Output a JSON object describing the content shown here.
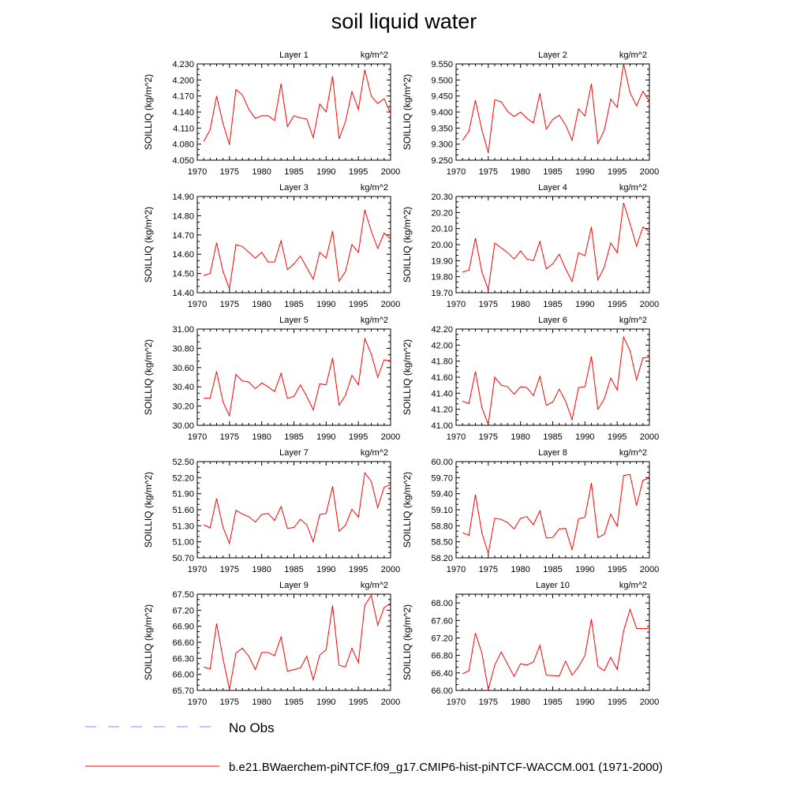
{
  "title": "soil liquid water",
  "legend": {
    "obs": {
      "label": "No Obs",
      "color": "#8a8aff",
      "style": "dashed"
    },
    "model": {
      "label": "b.e21.BWaerchem-piNTCF.f09_g17.CMIP6-hist-piNTCF-WACCM.001 (1971-2000)",
      "color": "#ff0000",
      "style": "solid"
    }
  },
  "chart_data": [
    {
      "type": "line",
      "title": "Layer 1",
      "unit": "kg/m^2",
      "ylabel": "SOILLIQ  (kg/m^2)",
      "xlim": [
        1970,
        2000
      ],
      "xticks": [
        1970,
        1975,
        1980,
        1985,
        1990,
        1995,
        2000
      ],
      "ylim": [
        4.05,
        4.23
      ],
      "yticks": [
        "4.050",
        "4.080",
        "4.110",
        "4.140",
        "4.170",
        "4.200",
        "4.230"
      ],
      "x": [
        1971,
        1972,
        1973,
        1974,
        1975,
        1976,
        1977,
        1978,
        1979,
        1980,
        1981,
        1982,
        1983,
        1984,
        1985,
        1986,
        1987,
        1988,
        1989,
        1990,
        1991,
        1992,
        1993,
        1994,
        1995,
        1996,
        1997,
        1998,
        1999,
        2000
      ],
      "series": [
        {
          "name": "b.e21.BWaerchem-piNTCF.f09_g17.CMIP6-hist-piNTCF-WACCM.001 (1971-2000)",
          "color": "#ff0000",
          "values": [
            4.085,
            4.107,
            4.17,
            4.118,
            4.079,
            4.182,
            4.172,
            4.145,
            4.128,
            4.133,
            4.133,
            4.124,
            4.193,
            4.113,
            4.133,
            4.129,
            4.127,
            4.092,
            4.155,
            4.14,
            4.207,
            4.09,
            4.122,
            4.178,
            4.145,
            4.219,
            4.17,
            4.156,
            4.165,
            4.137
          ]
        }
      ]
    },
    {
      "type": "line",
      "title": "Layer 2",
      "unit": "kg/m^2",
      "ylabel": "SOILLIQ  (kg/m^2)",
      "xlim": [
        1970,
        2000
      ],
      "xticks": [
        1970,
        1975,
        1980,
        1985,
        1990,
        1995,
        2000
      ],
      "ylim": [
        9.25,
        9.55
      ],
      "yticks": [
        "9.250",
        "9.300",
        "9.350",
        "9.400",
        "9.450",
        "9.500",
        "9.550"
      ],
      "x": [
        1971,
        1972,
        1973,
        1974,
        1975,
        1976,
        1977,
        1978,
        1979,
        1980,
        1981,
        1982,
        1983,
        1984,
        1985,
        1986,
        1987,
        1988,
        1989,
        1990,
        1991,
        1992,
        1993,
        1994,
        1995,
        1996,
        1997,
        1998,
        1999,
        2000
      ],
      "series": [
        {
          "name": "b.e21.BWaerchem-piNTCF.f09_g17.CMIP6-hist-piNTCF-WACCM.001 (1971-2000)",
          "color": "#ff0000",
          "values": [
            9.312,
            9.34,
            9.437,
            9.344,
            9.273,
            9.438,
            9.432,
            9.402,
            9.386,
            9.4,
            9.38,
            9.366,
            9.458,
            9.347,
            9.377,
            9.39,
            9.36,
            9.312,
            9.41,
            9.388,
            9.488,
            9.302,
            9.343,
            9.44,
            9.415,
            9.55,
            9.46,
            9.42,
            9.465,
            9.433
          ]
        }
      ]
    },
    {
      "type": "line",
      "title": "Layer 3",
      "unit": "kg/m^2",
      "ylabel": "SOILLIQ  (kg/m^2)",
      "xlim": [
        1970,
        2000
      ],
      "xticks": [
        1970,
        1975,
        1980,
        1985,
        1990,
        1995,
        2000
      ],
      "ylim": [
        14.4,
        14.9
      ],
      "yticks": [
        "14.40",
        "14.50",
        "14.60",
        "14.70",
        "14.80",
        "14.90"
      ],
      "x": [
        1971,
        1972,
        1973,
        1974,
        1975,
        1976,
        1977,
        1978,
        1979,
        1980,
        1981,
        1982,
        1983,
        1984,
        1985,
        1986,
        1987,
        1988,
        1989,
        1990,
        1991,
        1992,
        1993,
        1994,
        1995,
        1996,
        1997,
        1998,
        1999,
        2000
      ],
      "series": [
        {
          "name": "b.e21.BWaerchem-piNTCF.f09_g17.CMIP6-hist-piNTCF-WACCM.001 (1971-2000)",
          "color": "#ff0000",
          "values": [
            14.49,
            14.5,
            14.66,
            14.51,
            14.42,
            14.65,
            14.64,
            14.61,
            14.58,
            14.61,
            14.56,
            14.56,
            14.67,
            14.52,
            14.55,
            14.59,
            14.53,
            14.47,
            14.61,
            14.58,
            14.72,
            14.46,
            14.51,
            14.65,
            14.61,
            14.83,
            14.72,
            14.63,
            14.71,
            14.68
          ]
        }
      ]
    },
    {
      "type": "line",
      "title": "Layer 4",
      "unit": "kg/m^2",
      "ylabel": "SOILLIQ  (kg/m^2)",
      "xlim": [
        1970,
        2000
      ],
      "xticks": [
        1970,
        1975,
        1980,
        1985,
        1990,
        1995,
        2000
      ],
      "ylim": [
        19.7,
        20.3
      ],
      "yticks": [
        "19.70",
        "19.80",
        "19.90",
        "20.00",
        "20.10",
        "20.20",
        "20.30"
      ],
      "x": [
        1971,
        1972,
        1973,
        1974,
        1975,
        1976,
        1977,
        1978,
        1979,
        1980,
        1981,
        1982,
        1983,
        1984,
        1985,
        1986,
        1987,
        1988,
        1989,
        1990,
        1991,
        1992,
        1993,
        1994,
        1995,
        1996,
        1997,
        1998,
        1999,
        2000
      ],
      "series": [
        {
          "name": "b.e21.BWaerchem-piNTCF.f09_g17.CMIP6-hist-piNTCF-WACCM.001 (1971-2000)",
          "color": "#ff0000",
          "values": [
            19.83,
            19.84,
            20.04,
            19.83,
            19.72,
            20.01,
            19.98,
            19.95,
            19.91,
            19.96,
            19.91,
            19.9,
            20.02,
            19.85,
            19.88,
            19.94,
            19.85,
            19.77,
            19.95,
            19.93,
            20.11,
            19.78,
            19.86,
            20.01,
            19.95,
            20.26,
            20.13,
            19.99,
            20.11,
            20.08
          ]
        }
      ]
    },
    {
      "type": "line",
      "title": "Layer 5",
      "unit": "kg/m^2",
      "ylabel": "SOILLIQ  (kg/m^2)",
      "xlim": [
        1970,
        2000
      ],
      "xticks": [
        1970,
        1975,
        1980,
        1985,
        1990,
        1995,
        2000
      ],
      "ylim": [
        30.0,
        31.0
      ],
      "yticks": [
        "30.00",
        "30.20",
        "30.40",
        "30.60",
        "30.80",
        "31.00"
      ],
      "x": [
        1971,
        1972,
        1973,
        1974,
        1975,
        1976,
        1977,
        1978,
        1979,
        1980,
        1981,
        1982,
        1983,
        1984,
        1985,
        1986,
        1987,
        1988,
        1989,
        1990,
        1991,
        1992,
        1993,
        1994,
        1995,
        1996,
        1997,
        1998,
        1999,
        2000
      ],
      "series": [
        {
          "name": "b.e21.BWaerchem-piNTCF.f09_g17.CMIP6-hist-piNTCF-WACCM.001 (1971-2000)",
          "color": "#ff0000",
          "values": [
            30.28,
            30.28,
            30.56,
            30.24,
            30.1,
            30.53,
            30.46,
            30.45,
            30.38,
            30.44,
            30.4,
            30.35,
            30.54,
            30.28,
            30.3,
            30.42,
            30.3,
            30.16,
            30.43,
            30.42,
            30.7,
            30.21,
            30.31,
            30.52,
            30.42,
            30.9,
            30.74,
            30.5,
            30.68,
            30.67
          ]
        }
      ]
    },
    {
      "type": "line",
      "title": "Layer 6",
      "unit": "kg/m^2",
      "ylabel": "SOILLIQ  (kg/m^2)",
      "xlim": [
        1970,
        2000
      ],
      "xticks": [
        1970,
        1975,
        1980,
        1985,
        1990,
        1995,
        2000
      ],
      "ylim": [
        41.0,
        42.2
      ],
      "yticks": [
        "41.00",
        "41.20",
        "41.40",
        "41.60",
        "41.80",
        "42.00",
        "42.20"
      ],
      "x": [
        1971,
        1972,
        1973,
        1974,
        1975,
        1976,
        1977,
        1978,
        1979,
        1980,
        1981,
        1982,
        1983,
        1984,
        1985,
        1986,
        1987,
        1988,
        1989,
        1990,
        1991,
        1992,
        1993,
        1994,
        1995,
        1996,
        1997,
        1998,
        1999,
        2000
      ],
      "series": [
        {
          "name": "b.e21.BWaerchem-piNTCF.f09_g17.CMIP6-hist-piNTCF-WACCM.001 (1971-2000)",
          "color": "#ff0000",
          "values": [
            41.3,
            41.27,
            41.67,
            41.22,
            41.01,
            41.6,
            41.5,
            41.48,
            41.39,
            41.48,
            41.47,
            41.37,
            41.61,
            41.25,
            41.29,
            41.45,
            41.3,
            41.07,
            41.47,
            41.48,
            41.86,
            41.2,
            41.33,
            41.59,
            41.44,
            42.1,
            41.93,
            41.57,
            41.84,
            41.85
          ]
        }
      ]
    },
    {
      "type": "line",
      "title": "Layer 7",
      "unit": "kg/m^2",
      "ylabel": "SOILLIQ  (kg/m^2)",
      "xlim": [
        1970,
        2000
      ],
      "xticks": [
        1970,
        1975,
        1980,
        1985,
        1990,
        1995,
        2000
      ],
      "ylim": [
        50.7,
        52.5
      ],
      "yticks": [
        "50.70",
        "51.00",
        "51.30",
        "51.60",
        "51.90",
        "52.20",
        "52.50"
      ],
      "x": [
        1971,
        1972,
        1973,
        1974,
        1975,
        1976,
        1977,
        1978,
        1979,
        1980,
        1981,
        1982,
        1983,
        1984,
        1985,
        1986,
        1987,
        1988,
        1989,
        1990,
        1991,
        1992,
        1993,
        1994,
        1995,
        1996,
        1997,
        1998,
        1999,
        2000
      ],
      "series": [
        {
          "name": "b.e21.BWaerchem-piNTCF.f09_g17.CMIP6-hist-piNTCF-WACCM.001 (1971-2000)",
          "color": "#ff0000",
          "values": [
            51.32,
            51.26,
            51.81,
            51.27,
            50.97,
            51.59,
            51.52,
            51.47,
            51.37,
            51.51,
            51.53,
            51.4,
            51.66,
            51.25,
            51.27,
            51.42,
            51.32,
            51.0,
            51.51,
            51.53,
            52.04,
            51.2,
            51.31,
            51.61,
            51.46,
            52.29,
            52.13,
            51.64,
            52.02,
            52.07
          ]
        }
      ]
    },
    {
      "type": "line",
      "title": "Layer 8",
      "unit": "kg/m^2",
      "ylabel": "SOILLIQ  (kg/m^2)",
      "xlim": [
        1970,
        2000
      ],
      "xticks": [
        1970,
        1975,
        1980,
        1985,
        1990,
        1995,
        2000
      ],
      "ylim": [
        58.2,
        60.0
      ],
      "yticks": [
        "58.20",
        "58.50",
        "58.80",
        "59.10",
        "59.40",
        "59.70",
        "60.00"
      ],
      "x": [
        1971,
        1972,
        1973,
        1974,
        1975,
        1976,
        1977,
        1978,
        1979,
        1980,
        1981,
        1982,
        1983,
        1984,
        1985,
        1986,
        1987,
        1988,
        1989,
        1990,
        1991,
        1992,
        1993,
        1994,
        1995,
        1996,
        1997,
        1998,
        1999,
        2000
      ],
      "series": [
        {
          "name": "b.e21.BWaerchem-piNTCF.f09_g17.CMIP6-hist-piNTCF-WACCM.001 (1971-2000)",
          "color": "#ff0000",
          "values": [
            58.67,
            58.62,
            59.38,
            58.67,
            58.28,
            58.94,
            58.92,
            58.86,
            58.74,
            58.94,
            58.97,
            58.82,
            59.08,
            58.57,
            58.58,
            58.74,
            58.75,
            58.35,
            58.93,
            58.96,
            59.6,
            58.58,
            58.64,
            59.02,
            58.79,
            59.74,
            59.76,
            59.18,
            59.65,
            59.69
          ]
        }
      ]
    },
    {
      "type": "line",
      "title": "Layer 9",
      "unit": "kg/m^2",
      "ylabel": "SOILLIQ  (kg/m^2)",
      "xlim": [
        1970,
        2000
      ],
      "xticks": [
        1970,
        1975,
        1980,
        1985,
        1990,
        1995,
        2000
      ],
      "ylim": [
        65.7,
        67.5
      ],
      "yticks": [
        "65.70",
        "66.00",
        "66.30",
        "66.60",
        "66.90",
        "67.20",
        "67.50"
      ],
      "x": [
        1971,
        1972,
        1973,
        1974,
        1975,
        1976,
        1977,
        1978,
        1979,
        1980,
        1981,
        1982,
        1983,
        1984,
        1985,
        1986,
        1987,
        1988,
        1989,
        1990,
        1991,
        1992,
        1993,
        1994,
        1995,
        1996,
        1997,
        1998,
        1999,
        2000
      ],
      "series": [
        {
          "name": "b.e21.BWaerchem-piNTCF.f09_g17.CMIP6-hist-piNTCF-WACCM.001 (1971-2000)",
          "color": "#ff0000",
          "values": [
            66.14,
            66.1,
            66.95,
            66.29,
            65.72,
            66.4,
            66.49,
            66.34,
            66.09,
            66.41,
            66.41,
            66.35,
            66.7,
            66.06,
            66.09,
            66.12,
            66.34,
            65.9,
            66.36,
            66.46,
            67.29,
            66.17,
            66.14,
            66.49,
            66.22,
            67.29,
            67.48,
            66.92,
            67.25,
            67.33
          ]
        }
      ]
    },
    {
      "type": "line",
      "title": "Layer 10",
      "unit": "kg/m^2",
      "ylabel": "SOILLIQ  (kg/m^2)",
      "xlim": [
        1970,
        2000
      ],
      "xticks": [
        1970,
        1975,
        1980,
        1985,
        1990,
        1995,
        2000
      ],
      "ylim": [
        66.0,
        68.2
      ],
      "yticks": [
        "66.00",
        "66.40",
        "66.80",
        "67.20",
        "67.60",
        "68.00"
      ],
      "x": [
        1971,
        1972,
        1973,
        1974,
        1975,
        1976,
        1977,
        1978,
        1979,
        1980,
        1981,
        1982,
        1983,
        1984,
        1985,
        1986,
        1987,
        1988,
        1989,
        1990,
        1991,
        1992,
        1993,
        1994,
        1995,
        1996,
        1997,
        1998,
        1999,
        2000
      ],
      "series": [
        {
          "name": "b.e21.BWaerchem-piNTCF.f09_g17.CMIP6-hist-piNTCF-WACCM.001 (1971-2000)",
          "color": "#ff0000",
          "values": [
            66.38,
            66.45,
            67.31,
            66.85,
            66.02,
            66.58,
            66.88,
            66.6,
            66.32,
            66.61,
            66.58,
            66.65,
            67.03,
            66.35,
            66.34,
            66.33,
            66.67,
            66.35,
            66.54,
            66.8,
            67.63,
            66.55,
            66.45,
            66.76,
            66.48,
            67.36,
            67.85,
            67.42,
            67.41,
            67.42
          ]
        }
      ]
    }
  ]
}
